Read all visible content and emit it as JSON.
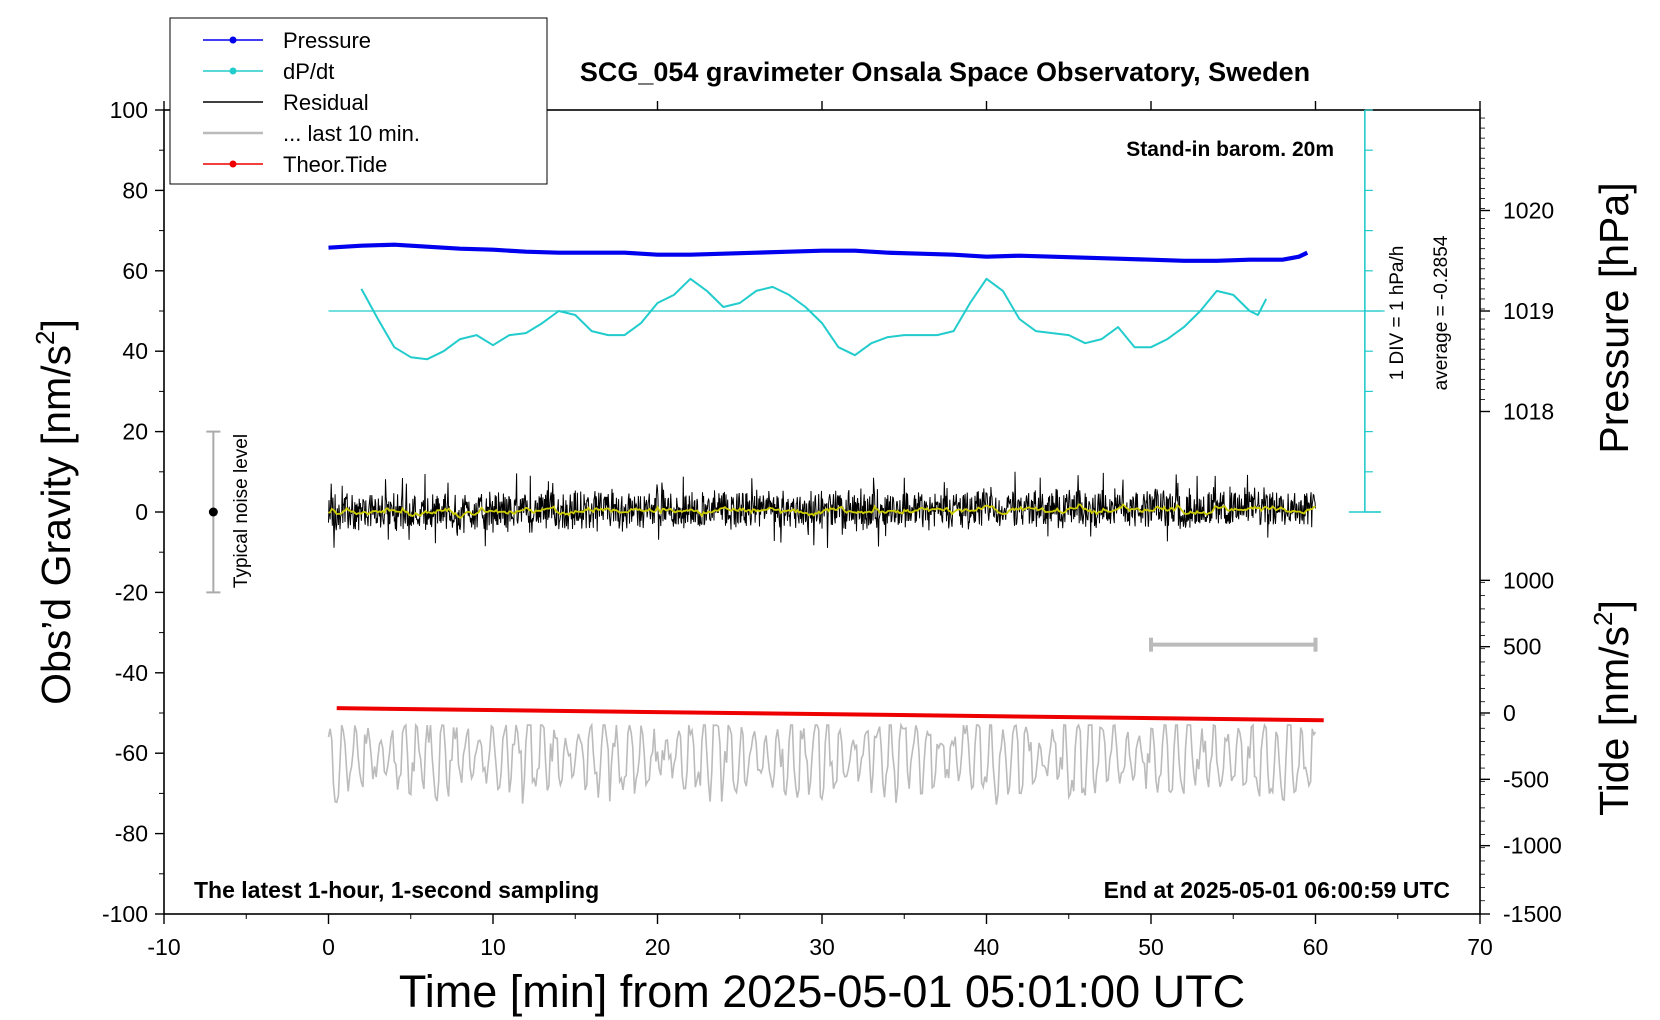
{
  "chart_data": {
    "type": "line",
    "title": "SCG_054 gravimeter Onsala Space Observatory, Sweden",
    "xlabel": "Time [min] from 2025-05-01 05:01:00 UTC",
    "ylabel_left": "Obs’d Gravity [nm/s",
    "ylabel_left_sup": "2",
    "ylabel_left_close": "]",
    "ylabel_right_pressure": "Pressure [hPa]",
    "ylabel_right_tide": "Tide [nm/s",
    "ylabel_right_tide_sup": "2",
    "ylabel_right_tide_close": "]",
    "xlim": [
      -10,
      70
    ],
    "ylim_left": [
      -100,
      100
    ],
    "x_ticks": [
      "-10",
      "0",
      "10",
      "20",
      "30",
      "40",
      "50",
      "60",
      "70"
    ],
    "y_ticks_left": [
      "100",
      "80",
      "60",
      "40",
      "20",
      "0",
      "-20",
      "-40",
      "-60",
      "-80",
      "-100"
    ],
    "pressure_ticks": [
      "1020",
      "1019",
      "1018"
    ],
    "tide_ticks": [
      "1000",
      "500",
      "0",
      "-500",
      "-1000",
      "-1500"
    ],
    "grid": false,
    "legend": {
      "placement": "top-left",
      "entries": [
        {
          "label": "Pressure",
          "color": "#0000ee",
          "marker": true
        },
        {
          "label": "dP/dt",
          "color": "#22cccc",
          "marker": true
        },
        {
          "label": "Residual",
          "color": "#000000",
          "marker": false
        },
        {
          "label": "... last 10 min.",
          "color": "#bbbbbb",
          "marker": false
        },
        {
          "label": "Theor.Tide",
          "color": "#ee0000",
          "marker": true
        }
      ]
    },
    "annotations": {
      "barometer": "Stand-in barom. 20m",
      "div_label": "1 DIV = 1 hPa/h",
      "average_label": "average = -0.2854",
      "noise_label": "Typical noise level",
      "bottom_left": "The latest 1-hour, 1-second sampling",
      "bottom_right": "End at 2025-05-01 06:00:59 UTC"
    },
    "series": [
      {
        "name": "Pressure",
        "color": "#0000ee",
        "unit": "hPa",
        "x": [
          0,
          2,
          4,
          6,
          8,
          10,
          12,
          14,
          16,
          18,
          20,
          22,
          24,
          26,
          28,
          30,
          32,
          34,
          36,
          38,
          40,
          42,
          44,
          46,
          48,
          50,
          52,
          54,
          56,
          57,
          58,
          59,
          59.5
        ],
        "values": [
          1019.63,
          1019.65,
          1019.66,
          1019.64,
          1019.62,
          1019.61,
          1019.59,
          1019.58,
          1019.58,
          1019.58,
          1019.56,
          1019.56,
          1019.57,
          1019.58,
          1019.59,
          1019.6,
          1019.6,
          1019.58,
          1019.57,
          1019.56,
          1019.54,
          1019.55,
          1019.54,
          1019.53,
          1019.52,
          1019.51,
          1019.5,
          1019.5,
          1019.51,
          1019.51,
          1019.51,
          1019.54,
          1019.58
        ]
      },
      {
        "name": "dP/dt",
        "color": "#22cccc",
        "unit": "nm/s2 axis",
        "x": [
          2,
          3,
          4,
          5,
          6,
          7,
          8,
          9,
          10,
          11,
          12,
          13,
          14,
          15,
          16,
          17,
          18,
          19,
          20,
          21,
          22,
          23,
          24,
          25,
          26,
          27,
          28,
          29,
          30,
          31,
          32,
          33,
          34,
          35,
          36,
          37,
          38,
          39,
          40,
          41,
          42,
          43,
          44,
          45,
          46,
          47,
          48,
          49,
          50,
          51,
          52,
          53,
          54,
          55,
          56,
          56.5,
          57
        ],
        "values": [
          55.5,
          48,
          41,
          38.5,
          38,
          40,
          43,
          44,
          41.5,
          44,
          44.5,
          47,
          50,
          49,
          45,
          44,
          44,
          47,
          52,
          54,
          58,
          55,
          51,
          52,
          55,
          56,
          54,
          51,
          47,
          41,
          39,
          42,
          43.5,
          44,
          44,
          44,
          45,
          52,
          58,
          55,
          48,
          45,
          44.5,
          44,
          42,
          43,
          46,
          41,
          41,
          43,
          46,
          50,
          55,
          54,
          50,
          49,
          53
        ]
      },
      {
        "name": "Residual",
        "color": "#000000",
        "unit": "nm/s2",
        "x_range": [
          0,
          60
        ],
        "band_min": -8,
        "band_max": 8
      },
      {
        "name": "... last 10 min.",
        "color": "#bbbbbb",
        "unit": "nm/s2",
        "x_range": [
          0,
          60
        ],
        "baseline": -61,
        "band_min": -73,
        "band_max": -53
      },
      {
        "name": "Theor.Tide",
        "color": "#ee0000",
        "unit": "nm/s2",
        "x": [
          0.5,
          60.5
        ],
        "values": [
          -48.8,
          -51.8
        ]
      }
    ],
    "pressure_axis": {
      "values": [
        1020,
        1019,
        1018
      ],
      "gravity_equivalent": [
        75,
        50,
        25
      ]
    },
    "tide_axis": {
      "values": [
        1000,
        500,
        0,
        -500,
        -1000,
        -1500
      ],
      "gravity_equivalent": [
        -17,
        -33.5,
        -50,
        -66.5,
        -83,
        -100
      ]
    },
    "dpdt_zero": 50,
    "noise_bar": {
      "x": -7,
      "min": -20,
      "max": 20,
      "center": 0
    },
    "last10_marker": {
      "x": [
        50,
        60
      ],
      "y": -33
    }
  }
}
